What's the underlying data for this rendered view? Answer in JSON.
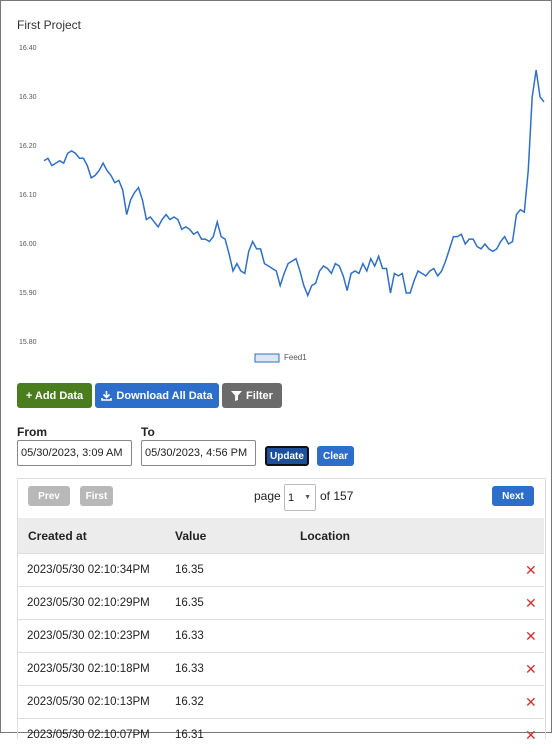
{
  "chart_data": {
    "type": "line",
    "title": "First Project",
    "categories": [
      null,
      null,
      null,
      null,
      null,
      null,
      null,
      null,
      null,
      null,
      null,
      null,
      null,
      null,
      null,
      null,
      null,
      null,
      null,
      null,
      null,
      null,
      null,
      null,
      null,
      null,
      null,
      null,
      null,
      null,
      null,
      null,
      null,
      null,
      null,
      null,
      null,
      null,
      null,
      null,
      null,
      null,
      null,
      null,
      null,
      null,
      null,
      null,
      null,
      null,
      null,
      null,
      null,
      null,
      null,
      null,
      null,
      null,
      null,
      null,
      null,
      null,
      null,
      null,
      null,
      null,
      null,
      null,
      null,
      null,
      null,
      null,
      null,
      null,
      null,
      null,
      null,
      null,
      null,
      null,
      null,
      null,
      null,
      null,
      null,
      null,
      null,
      null,
      null,
      null,
      null,
      null,
      null,
      null,
      null,
      null,
      null,
      null,
      null,
      null,
      null,
      null,
      null,
      null,
      null,
      null,
      null,
      null,
      null,
      null,
      null,
      null,
      null,
      null,
      null,
      null,
      null,
      null,
      null,
      null,
      null,
      null,
      null,
      null,
      null,
      null,
      null,
      null
    ],
    "series": [
      {
        "name": "Feed1",
        "color": "#2f6fc4",
        "values": [
          16.17,
          16.175,
          16.16,
          16.165,
          16.17,
          16.165,
          16.185,
          16.19,
          16.185,
          16.175,
          16.175,
          16.16,
          16.135,
          16.14,
          16.15,
          16.165,
          16.15,
          16.14,
          16.125,
          16.13,
          16.11,
          16.06,
          16.09,
          16.105,
          16.115,
          16.09,
          16.05,
          16.055,
          16.045,
          16.035,
          16.05,
          16.06,
          16.05,
          16.055,
          16.05,
          16.03,
          16.035,
          16.03,
          16.02,
          16.025,
          16.01,
          16.01,
          16.005,
          16.015,
          16.045,
          16.015,
          16.01,
          15.98,
          15.945,
          15.96,
          15.945,
          15.94,
          15.985,
          16.005,
          15.99,
          15.99,
          15.96,
          15.955,
          15.95,
          15.945,
          15.915,
          15.94,
          15.96,
          15.965,
          15.97,
          15.945,
          15.915,
          15.895,
          15.915,
          15.92,
          15.945,
          15.955,
          15.95,
          15.94,
          15.96,
          15.955,
          15.935,
          15.905,
          15.94,
          15.945,
          15.94,
          15.96,
          15.945,
          15.97,
          15.955,
          15.975,
          15.95,
          15.95,
          15.9,
          15.94,
          15.935,
          15.94,
          15.9,
          15.9,
          15.925,
          15.945,
          15.94,
          15.935,
          15.945,
          15.95,
          15.935,
          15.945,
          15.965,
          15.99,
          16.015,
          16.015,
          16.02,
          16.0,
          16.01,
          16.01,
          15.995,
          15.99,
          16.0,
          15.99,
          15.985,
          15.99,
          16.005,
          16.015,
          16.0,
          16.005,
          16.06,
          16.07,
          16.065,
          16.15,
          16.3,
          16.355,
          16.3,
          16.29
        ]
      }
    ],
    "ylim": [
      15.8,
      16.4
    ],
    "yticks": [
      {
        "value": 15.8,
        "label": "15.80"
      },
      {
        "value": 15.9,
        "label": "15.90"
      },
      {
        "value": 16.0,
        "label": "16.00"
      },
      {
        "value": 16.1,
        "label": "16.10"
      },
      {
        "value": 16.2,
        "label": "16.20"
      },
      {
        "value": 16.3,
        "label": "16.30"
      },
      {
        "value": 16.4,
        "label": "16.40"
      }
    ],
    "grid": false,
    "legend": "bottom"
  },
  "toolbar": {
    "add": "+ Add Data",
    "download": "Download All Data",
    "filter": "Filter"
  },
  "range": {
    "from_label": "From",
    "from_value": "05/30/2023, 3:09 AM",
    "to_label": "To",
    "to_value": "05/30/2023, 4:56 PM",
    "update": "Update",
    "clear": "Clear"
  },
  "pagination": {
    "prev": "Prev",
    "first": "First",
    "page": "page",
    "current": "1",
    "of": "of 157",
    "next": "Next"
  },
  "table": {
    "headers": [
      "Created at",
      "Value",
      "Location"
    ],
    "rows": [
      [
        "2023/05/30 02:10:34PM",
        "16.35"
      ],
      [
        "2023/05/30 02:10:29PM",
        "16.35"
      ],
      [
        "2023/05/30 02:10:23PM",
        "16.33"
      ],
      [
        "2023/05/30 02:10:18PM",
        "16.33"
      ],
      [
        "2023/05/30 02:10:13PM",
        "16.32"
      ],
      [
        "2023/05/30 02:10:07PM",
        "16.31"
      ]
    ]
  }
}
